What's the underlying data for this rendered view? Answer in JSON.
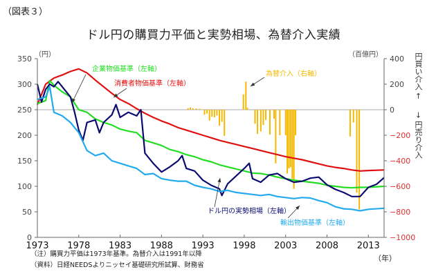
{
  "figure_label": "（図表３）",
  "chart_data": {
    "type": "line",
    "title": "ドル円の購買力平価と実勢相場、為替介入実績",
    "xlabel": "（年）",
    "ylabel_left": "（円）",
    "ylabel_right": "（百億円）",
    "right_axis_labels": {
      "up": "円買い介入 ←",
      "down": "→ 円売り介入"
    },
    "xlim": [
      1973,
      2014.9
    ],
    "ylim_left": [
      0,
      350
    ],
    "ylim_right": [
      -1000,
      400
    ],
    "x_ticks": [
      1973,
      1978,
      1983,
      1988,
      1993,
      1998,
      2003,
      2008,
      2013
    ],
    "y_ticks_left": [
      0,
      50,
      100,
      150,
      200,
      250,
      300,
      350
    ],
    "y_ticks_right": [
      400,
      200,
      0,
      -200,
      -400,
      -600,
      -800,
      -1000
    ],
    "y_right_negative_color": "#e03030",
    "grid": false,
    "zero_line_right": 0,
    "series": [
      {
        "name": "消費者物価基準（左軸）",
        "axis": "left",
        "color": "#e01010",
        "x": [
          1973,
          1974,
          1975,
          1976,
          1977,
          1978,
          1979,
          1980,
          1981,
          1982,
          1983,
          1984,
          1985,
          1986,
          1987,
          1988,
          1989,
          1990,
          1991,
          1992,
          1993,
          1994,
          1995,
          1996,
          1997,
          1998,
          1999,
          2000,
          2001,
          2002,
          2003,
          2004,
          2005,
          2006,
          2007,
          2008,
          2009,
          2010,
          2011,
          2012,
          2013,
          2014.9
        ],
        "values": [
          260,
          300,
          312,
          318,
          325,
          330,
          322,
          308,
          295,
          282,
          270,
          262,
          252,
          243,
          235,
          228,
          222,
          215,
          210,
          205,
          200,
          195,
          190,
          186,
          182,
          178,
          174,
          170,
          166,
          162,
          158,
          155,
          152,
          148,
          144,
          140,
          137,
          135,
          132,
          130,
          131,
          132
        ]
      },
      {
        "name": "企業物価基準（左軸）",
        "axis": "left",
        "color": "#22dd22",
        "x": [
          1973,
          1974,
          1974.5,
          1975,
          1976,
          1977,
          1978,
          1979,
          1980,
          1981,
          1982,
          1983,
          1984,
          1985,
          1986,
          1987,
          1988,
          1989,
          1990,
          1991,
          1992,
          1993,
          1994,
          1995,
          1996,
          1997,
          1998,
          1999,
          2000,
          2001,
          2002,
          2003,
          2004,
          2005,
          2006,
          2007,
          2008,
          2009,
          2010,
          2011,
          2012,
          2013,
          2014.9
        ],
        "values": [
          262,
          268,
          307,
          298,
          285,
          275,
          250,
          245,
          232,
          225,
          220,
          212,
          208,
          205,
          190,
          185,
          180,
          172,
          168,
          162,
          158,
          152,
          148,
          142,
          138,
          134,
          130,
          126,
          125,
          122,
          118,
          115,
          112,
          110,
          108,
          106,
          102,
          100,
          98,
          97,
          98,
          98,
          100
        ]
      },
      {
        "name": "ドル円の実勢相場（左軸）",
        "axis": "left",
        "color": "#0a0a70",
        "x": [
          1973,
          1973.5,
          1974,
          1974.5,
          1975,
          1975.5,
          1976,
          1977,
          1977.5,
          1978,
          1978.5,
          1979,
          1980,
          1980.5,
          1981,
          1982,
          1982.5,
          1983,
          1984,
          1985,
          1985.5,
          1986,
          1987,
          1988,
          1989,
          1990,
          1990.5,
          1991,
          1992,
          1993,
          1994,
          1995,
          1995.3,
          1996,
          1997,
          1998,
          1998.6,
          1999,
          2000,
          2001,
          2002,
          2003,
          2004,
          2005,
          2006,
          2007,
          2008,
          2009,
          2010,
          2011,
          2012,
          2013,
          2014,
          2014.9
        ],
        "values": [
          300,
          265,
          290,
          300,
          295,
          305,
          295,
          275,
          245,
          210,
          190,
          225,
          230,
          205,
          225,
          240,
          260,
          235,
          245,
          238,
          250,
          165,
          145,
          128,
          138,
          150,
          160,
          135,
          130,
          112,
          102,
          95,
          82,
          105,
          120,
          135,
          145,
          115,
          108,
          122,
          125,
          115,
          108,
          110,
          116,
          118,
          103,
          94,
          88,
          80,
          80,
          98,
          104,
          117
        ]
      },
      {
        "name": "輸出物価基準（左軸）",
        "axis": "left",
        "color": "#22aaee",
        "x": [
          1973,
          1974,
          1974.5,
          1975,
          1976,
          1977,
          1978,
          1979,
          1980,
          1981,
          1982,
          1983,
          1984,
          1985,
          1986,
          1987,
          1988,
          1989,
          1990,
          1991,
          1992,
          1993,
          1994,
          1995,
          1996,
          1997,
          1998,
          1999,
          2000,
          2001,
          2002,
          2003,
          2004,
          2005,
          2006,
          2007,
          2008,
          2009,
          2010,
          2011,
          2012,
          2013,
          2014.9
        ],
        "values": [
          270,
          275,
          295,
          245,
          238,
          225,
          205,
          170,
          160,
          165,
          150,
          145,
          140,
          135,
          123,
          125,
          115,
          112,
          110,
          110,
          102,
          98,
          95,
          90,
          92,
          88,
          86,
          84,
          82,
          84,
          80,
          78,
          76,
          78,
          77,
          72,
          68,
          60,
          56,
          55,
          52,
          55,
          57
        ]
      }
    ],
    "intervention_bars": {
      "name": "為替介入（右軸）",
      "axis": "right",
      "color": "#f5b800",
      "x": [
        1991.2,
        1991.5,
        1991.8,
        1992.2,
        1992.6,
        1993.2,
        1993.5,
        1993.8,
        1994.1,
        1994.4,
        1994.7,
        1995.0,
        1995.3,
        1995.6,
        1997.9,
        1998.2,
        1998.4,
        1999.3,
        1999.6,
        2000.0,
        2000.3,
        2000.6,
        2001.1,
        2001.6,
        2001.8,
        2002.3,
        2003.0,
        2003.2,
        2003.4,
        2003.6,
        2003.8,
        2004.0,
        2004.2,
        2010.8,
        2011.2,
        2011.6,
        2011.9
      ],
      "values": [
        12,
        18,
        10,
        10,
        8,
        -40,
        -30,
        -85,
        -55,
        -60,
        -45,
        -125,
        -95,
        -205,
        120,
        220,
        15,
        -110,
        -190,
        -170,
        -120,
        -80,
        -195,
        -70,
        -420,
        -200,
        -200,
        -500,
        -460,
        -450,
        -540,
        -620,
        -200,
        -210,
        -100,
        -650,
        -780
      ]
    },
    "annotations": [
      {
        "text": "企業物価基準（左軸）",
        "series": "企業物価基準（左軸）"
      },
      {
        "text": "消費者物価基準（左軸）",
        "series": "消費者物価基準（左軸）"
      },
      {
        "text": "為替介入（右軸）",
        "series": "為替介入（右軸）"
      },
      {
        "text": "ドル円の実勢相場（左軸）",
        "series": "ドル円の実勢相場（左軸）"
      },
      {
        "text": "輸出物価基準（左軸）",
        "series": "輸出物価基準（左軸）"
      }
    ]
  },
  "notes": {
    "note1": "（注）購買力平価は1973年基準。為替介入は1991年以降",
    "note2": "（資料）日経NEEDSよりニッセイ基礎研究所試算、財務省"
  }
}
